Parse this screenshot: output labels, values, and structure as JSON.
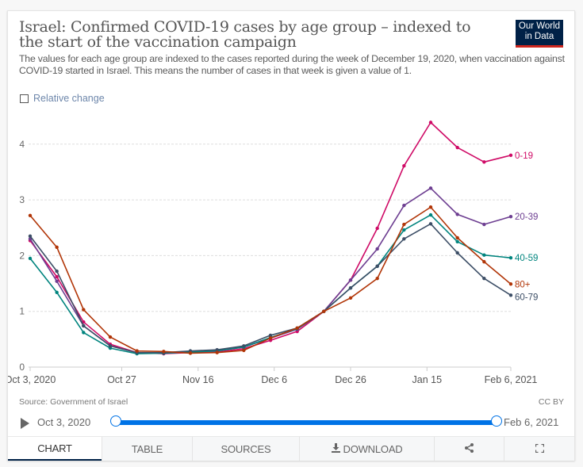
{
  "header": {
    "title": "Israel: Confirmed COVID-19 cases by age group – indexed to the start of the vaccination campaign",
    "subtitle": "The values for each age group are indexed to the cases reported during the week of December 19, 2020, when vaccination against COVID-19 started in Israel. This means the number of cases in that week is given a value of 1.",
    "logo_line1": "Our World",
    "logo_line2": "in Data",
    "relative_change_label": "Relative change",
    "relative_change_checked": false
  },
  "footer": {
    "source": "Source: Government of Israel",
    "license": "CC BY"
  },
  "timeline": {
    "start_label": "Oct 3, 2020",
    "end_label": "Feb 6, 2021",
    "play_icon": "play-icon"
  },
  "tabs": [
    {
      "label": "CHART",
      "active": true
    },
    {
      "label": "TABLE",
      "active": false
    },
    {
      "label": "SOURCES",
      "active": false
    },
    {
      "label": "DOWNLOAD",
      "active": false,
      "icon": "download-icon"
    },
    {
      "label": "",
      "active": false,
      "icon": "share-icon"
    },
    {
      "label": "",
      "active": false,
      "icon": "fullscreen-icon"
    }
  ],
  "chart_data": {
    "type": "line",
    "title": "Israel: Confirmed COVID-19 cases by age group – indexed to the start of the vaccination campaign",
    "xlabel": "",
    "ylabel": "",
    "x": [
      "2020-10-03",
      "2020-10-10",
      "2020-10-17",
      "2020-10-24",
      "2020-10-31",
      "2020-11-07",
      "2020-11-14",
      "2020-11-21",
      "2020-11-28",
      "2020-12-05",
      "2020-12-12",
      "2020-12-19",
      "2020-12-26",
      "2021-01-02",
      "2021-01-09",
      "2021-01-16",
      "2021-01-23",
      "2021-01-30",
      "2021-02-06"
    ],
    "x_ticks": [
      {
        "index": 0,
        "label": "Oct 3, 2020"
      },
      {
        "index": 3.43,
        "label": "Oct 27"
      },
      {
        "index": 6.29,
        "label": "Nov 16"
      },
      {
        "index": 9.14,
        "label": "Dec 6"
      },
      {
        "index": 12,
        "label": "Dec 26"
      },
      {
        "index": 14.86,
        "label": "Jan 15"
      },
      {
        "index": 18,
        "label": "Feb 6, 2021"
      }
    ],
    "y_ticks": [
      0,
      1,
      2,
      3,
      4
    ],
    "ylim": [
      0,
      4.5
    ],
    "grid": true,
    "legend": "right-end-labels",
    "series": [
      {
        "name": "0-19",
        "color": "#cf0a66",
        "values": [
          2.27,
          1.62,
          0.81,
          0.41,
          0.26,
          0.24,
          0.26,
          0.27,
          0.33,
          0.48,
          0.64,
          1.0,
          1.56,
          2.49,
          3.61,
          4.39,
          3.94,
          3.68,
          3.8
        ]
      },
      {
        "name": "20-39",
        "color": "#6d3e91",
        "values": [
          2.3,
          1.54,
          0.74,
          0.38,
          0.26,
          0.25,
          0.27,
          0.29,
          0.36,
          0.52,
          0.68,
          1.0,
          1.56,
          2.12,
          2.9,
          3.21,
          2.74,
          2.56,
          2.7
        ]
      },
      {
        "name": "40-59",
        "color": "#00847e",
        "values": [
          1.95,
          1.34,
          0.62,
          0.34,
          0.24,
          0.25,
          0.27,
          0.29,
          0.36,
          0.53,
          0.69,
          1.0,
          1.42,
          1.81,
          2.46,
          2.73,
          2.25,
          2.01,
          1.96
        ]
      },
      {
        "name": "60-79",
        "color": "#3c4e66",
        "values": [
          2.35,
          1.72,
          0.74,
          0.38,
          0.26,
          0.26,
          0.29,
          0.31,
          0.38,
          0.57,
          0.7,
          1.0,
          1.42,
          1.81,
          2.3,
          2.57,
          2.05,
          1.59,
          1.29
        ]
      },
      {
        "name": "80+",
        "color": "#b13507",
        "values": [
          2.72,
          2.15,
          1.03,
          0.54,
          0.29,
          0.28,
          0.25,
          0.26,
          0.3,
          0.52,
          0.7,
          1.0,
          1.24,
          1.59,
          2.56,
          2.87,
          2.32,
          1.89,
          1.49
        ]
      }
    ]
  }
}
